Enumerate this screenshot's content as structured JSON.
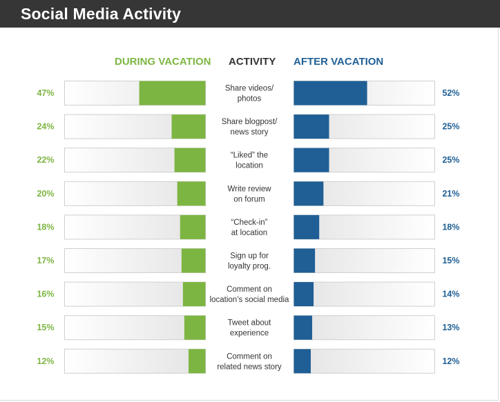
{
  "header": {
    "title": "Social Media Activity"
  },
  "colors": {
    "header_bg": "#363636",
    "during": "#7db542",
    "after": "#1f5f95",
    "track": "#ebebeb",
    "track_border": "#cfcfcf",
    "label": "#333333"
  },
  "chart_data": {
    "type": "bar",
    "title": "Social Media Activity",
    "xlim": [
      0,
      100
    ],
    "grid": false,
    "legend": "column headers at top",
    "column_headers": {
      "during": "DURING VACATION",
      "activity": "ACTIVITY",
      "after": "AFTER VACATION"
    },
    "categories": [
      [
        "Share videos/",
        "photos"
      ],
      [
        "Share blogpost/",
        "news story"
      ],
      [
        "“Liked” the",
        "location"
      ],
      [
        "Write review",
        "on forum"
      ],
      [
        "“Check-in”",
        "at location"
      ],
      [
        "Sign up for",
        "loyalty prog."
      ],
      [
        "Comment on",
        "location’s social media"
      ],
      [
        "Tweet about",
        "experience"
      ],
      [
        "Comment on",
        "related news story"
      ]
    ],
    "series": [
      {
        "name": "DURING VACATION",
        "color": "#7db542",
        "values": [
          47,
          24,
          22,
          20,
          18,
          17,
          16,
          15,
          12
        ],
        "labels": [
          "47%",
          "24%",
          "22%",
          "20%",
          "18%",
          "17%",
          "16%",
          "15%",
          "12%"
        ]
      },
      {
        "name": "AFTER VACATION",
        "color": "#1f5f95",
        "values": [
          52,
          25,
          25,
          21,
          18,
          15,
          14,
          13,
          12
        ],
        "labels": [
          "52%",
          "25%",
          "25%",
          "21%",
          "18%",
          "15%",
          "14%",
          "13%",
          "12%"
        ]
      }
    ]
  }
}
